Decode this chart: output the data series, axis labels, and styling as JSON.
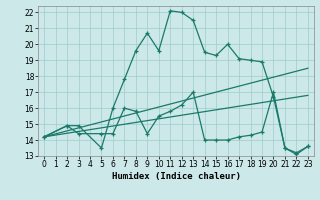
{
  "xlabel": "Humidex (Indice chaleur)",
  "xlim": [
    -0.5,
    23.5
  ],
  "ylim": [
    13,
    22.4
  ],
  "xticks": [
    0,
    1,
    2,
    3,
    4,
    5,
    6,
    7,
    8,
    9,
    10,
    11,
    12,
    13,
    14,
    15,
    16,
    17,
    18,
    19,
    20,
    21,
    22,
    23
  ],
  "yticks": [
    13,
    14,
    15,
    16,
    17,
    18,
    19,
    20,
    21,
    22
  ],
  "bg_color": "#cce8e8",
  "grid_color": "#a0cccc",
  "line_color": "#1a7a6a",
  "lines": [
    {
      "x": [
        0,
        2,
        3,
        5,
        6,
        7,
        8,
        9,
        10,
        11,
        12,
        13,
        14,
        15,
        16,
        17,
        18,
        19,
        20,
        21,
        22,
        23
      ],
      "y": [
        14.2,
        14.9,
        14.9,
        13.5,
        16.0,
        17.8,
        19.6,
        20.7,
        19.6,
        22.1,
        22.0,
        21.5,
        19.5,
        19.3,
        20.0,
        19.1,
        19.0,
        18.9,
        16.7,
        13.5,
        13.1,
        13.6
      ],
      "marker": true
    },
    {
      "x": [
        0,
        2,
        3,
        5,
        6,
        7,
        8,
        9,
        10,
        11,
        12,
        13,
        14,
        15,
        16,
        17,
        18,
        19,
        20,
        21,
        22,
        23
      ],
      "y": [
        14.2,
        14.9,
        14.4,
        14.4,
        14.4,
        16.0,
        15.8,
        14.4,
        15.5,
        15.8,
        16.2,
        17.0,
        14.0,
        14.0,
        14.0,
        14.2,
        14.3,
        14.5,
        17.0,
        13.5,
        13.2,
        13.6
      ],
      "marker": true
    },
    {
      "x": [
        0,
        23
      ],
      "y": [
        14.2,
        18.5
      ],
      "marker": false
    },
    {
      "x": [
        0,
        23
      ],
      "y": [
        14.2,
        16.8
      ],
      "marker": false
    }
  ]
}
